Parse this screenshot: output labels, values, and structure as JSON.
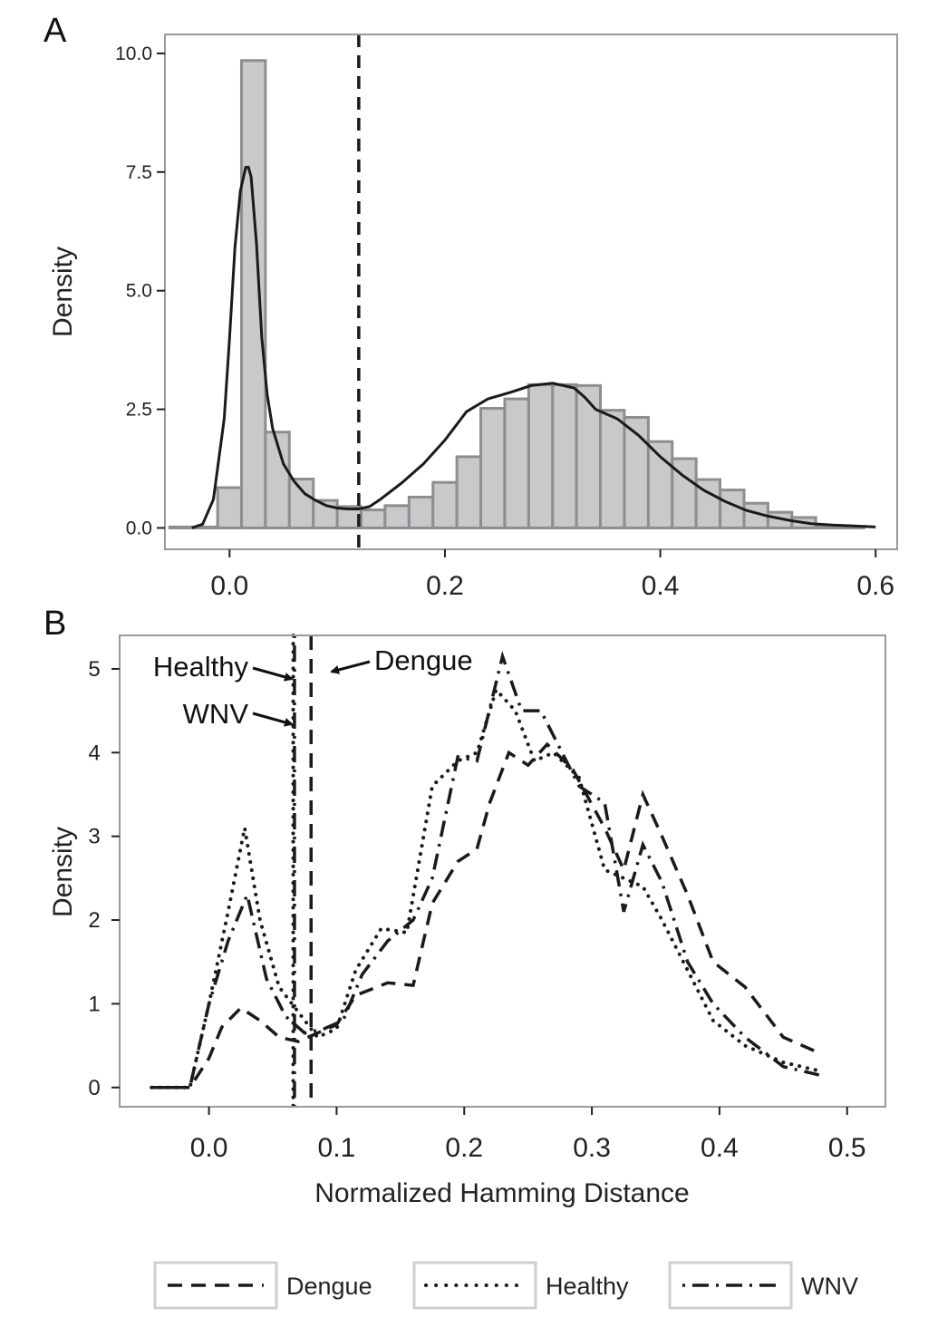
{
  "chart_data": [
    {
      "panel_label": "A",
      "type": "bar",
      "ylabel": "Density",
      "xlim": [
        -0.06,
        0.62
      ],
      "ylim": [
        -0.45,
        10.4
      ],
      "x_ticks": [
        0.0,
        0.2,
        0.4,
        0.6
      ],
      "x_tick_labels": [
        "0.0",
        "0.2",
        "0.4",
        "0.6"
      ],
      "y_ticks": [
        0,
        2.5,
        5,
        7.5,
        10
      ],
      "y_tick_labels": [
        "0.0",
        "2.5",
        "5.0",
        "7.5",
        "10.0"
      ],
      "grid": false,
      "bin_width": 0.0222,
      "histogram": {
        "bin_start": [
          -0.0556,
          -0.0333,
          -0.0111,
          0.0111,
          0.0333,
          0.0556,
          0.0778,
          0.1,
          0.1222,
          0.1444,
          0.1667,
          0.1889,
          0.2111,
          0.2333,
          0.2556,
          0.2778,
          0.3,
          0.3222,
          0.3444,
          0.3667,
          0.3889,
          0.4111,
          0.4333,
          0.4556,
          0.4778,
          0.5,
          0.5222,
          0.5444,
          0.5667
        ],
        "density": [
          0.02,
          0.02,
          0.85,
          9.85,
          2.02,
          1.03,
          0.58,
          0.45,
          0.38,
          0.47,
          0.65,
          0.96,
          1.5,
          2.52,
          2.72,
          3.02,
          3.02,
          3.0,
          2.48,
          2.33,
          1.82,
          1.46,
          1.02,
          0.8,
          0.52,
          0.33,
          0.22,
          0.03,
          0.03
        ]
      },
      "density_curve": {
        "x": [
          -0.035,
          -0.025,
          -0.015,
          -0.005,
          0.0,
          0.005,
          0.01,
          0.015,
          0.0175,
          0.02,
          0.025,
          0.03,
          0.035,
          0.04,
          0.05,
          0.06,
          0.07,
          0.08,
          0.09,
          0.1,
          0.11,
          0.12,
          0.13,
          0.14,
          0.16,
          0.18,
          0.2,
          0.22,
          0.24,
          0.26,
          0.28,
          0.3,
          0.32,
          0.33,
          0.34,
          0.36,
          0.38,
          0.4,
          0.42,
          0.44,
          0.46,
          0.48,
          0.5,
          0.52,
          0.54,
          0.56,
          0.58,
          0.6
        ],
        "y": [
          0.0,
          0.08,
          0.6,
          2.3,
          4.0,
          5.9,
          7.1,
          7.6,
          7.6,
          7.4,
          6.0,
          4.0,
          2.8,
          2.1,
          1.35,
          0.98,
          0.72,
          0.58,
          0.47,
          0.42,
          0.4,
          0.4,
          0.45,
          0.6,
          0.95,
          1.35,
          1.85,
          2.45,
          2.72,
          2.85,
          3.0,
          3.05,
          2.95,
          2.75,
          2.5,
          2.3,
          1.95,
          1.5,
          1.12,
          0.8,
          0.56,
          0.37,
          0.25,
          0.16,
          0.09,
          0.06,
          0.04,
          0.02
        ]
      },
      "vline": {
        "x": 0.12,
        "style": "dashed"
      }
    },
    {
      "panel_label": "B",
      "type": "line",
      "xlabel": "Normalized Hamming Distance",
      "ylabel": "Density",
      "xlim": [
        -0.07,
        0.53
      ],
      "ylim": [
        -0.23,
        5.4
      ],
      "x_ticks": [
        0.0,
        0.1,
        0.2,
        0.3,
        0.4,
        0.5
      ],
      "x_tick_labels": [
        "0.0",
        "0.1",
        "0.2",
        "0.3",
        "0.4",
        "0.5"
      ],
      "y_ticks": [
        0,
        1,
        2,
        3,
        4,
        5
      ],
      "y_tick_labels": [
        "0",
        "1",
        "2",
        "3",
        "4",
        "5"
      ],
      "grid": false,
      "legend_position": "bottom",
      "series": [
        {
          "name": "Dengue",
          "style": "dashed",
          "x": [
            -0.045,
            -0.015,
            0.0,
            0.01,
            0.025,
            0.04,
            0.055,
            0.07,
            0.085,
            0.1,
            0.115,
            0.14,
            0.16,
            0.175,
            0.195,
            0.21,
            0.22,
            0.235,
            0.25,
            0.265,
            0.285,
            0.31,
            0.325,
            0.34,
            0.355,
            0.375,
            0.395,
            0.42,
            0.45,
            0.48
          ],
          "y": [
            0.0,
            0.0,
            0.35,
            0.72,
            0.95,
            0.8,
            0.6,
            0.55,
            0.65,
            0.75,
            1.1,
            1.25,
            1.22,
            2.2,
            2.7,
            2.85,
            3.4,
            4.0,
            3.85,
            4.1,
            3.8,
            3.1,
            2.6,
            3.5,
            3.0,
            2.3,
            1.5,
            1.2,
            0.6,
            0.4
          ]
        },
        {
          "name": "Healthy",
          "style": "dotted",
          "x": [
            -0.045,
            -0.015,
            0.0,
            0.015,
            0.028,
            0.04,
            0.055,
            0.07,
            0.085,
            0.1,
            0.115,
            0.135,
            0.155,
            0.175,
            0.195,
            0.21,
            0.225,
            0.24,
            0.255,
            0.27,
            0.29,
            0.31,
            0.325,
            0.34,
            0.355,
            0.375,
            0.395,
            0.42,
            0.45,
            0.478
          ],
          "y": [
            0.0,
            0.0,
            1.0,
            2.1,
            3.1,
            2.0,
            1.2,
            0.9,
            0.6,
            0.7,
            1.4,
            1.9,
            1.85,
            3.6,
            3.9,
            4.0,
            4.75,
            4.5,
            3.9,
            4.0,
            3.7,
            2.6,
            2.5,
            2.4,
            2.0,
            1.4,
            0.8,
            0.5,
            0.3,
            0.2
          ]
        },
        {
          "name": "WNV",
          "style": "dot-dash",
          "x": [
            -0.045,
            -0.015,
            0.0,
            0.015,
            0.03,
            0.045,
            0.06,
            0.075,
            0.09,
            0.105,
            0.12,
            0.14,
            0.16,
            0.175,
            0.195,
            0.21,
            0.23,
            0.245,
            0.26,
            0.275,
            0.29,
            0.31,
            0.325,
            0.34,
            0.355,
            0.375,
            0.395,
            0.42,
            0.45,
            0.478
          ],
          "y": [
            0.0,
            0.0,
            1.0,
            1.75,
            2.3,
            1.3,
            0.85,
            0.65,
            0.7,
            0.8,
            1.35,
            1.75,
            2.0,
            2.5,
            3.95,
            3.9,
            5.15,
            4.5,
            4.5,
            4.05,
            3.6,
            3.4,
            2.1,
            2.9,
            2.45,
            1.5,
            1.0,
            0.6,
            0.25,
            0.15
          ]
        }
      ],
      "vlines": [
        {
          "name": "Healthy",
          "x": 0.066,
          "style": "dotted"
        },
        {
          "name": "WNV",
          "x": 0.067,
          "style": "dot-dash"
        },
        {
          "name": "Dengue",
          "x": 0.08,
          "style": "dashed"
        }
      ],
      "annotations": [
        {
          "text": "Healthy",
          "points_to": "Healthy"
        },
        {
          "text": "WNV",
          "points_to": "WNV"
        },
        {
          "text": "Dengue",
          "points_to": "Dengue"
        }
      ],
      "legend": [
        {
          "label": "Dengue",
          "style": "dashed"
        },
        {
          "label": "Healthy",
          "style": "dotted"
        },
        {
          "label": "WNV",
          "style": "dot-dash"
        }
      ]
    }
  ]
}
